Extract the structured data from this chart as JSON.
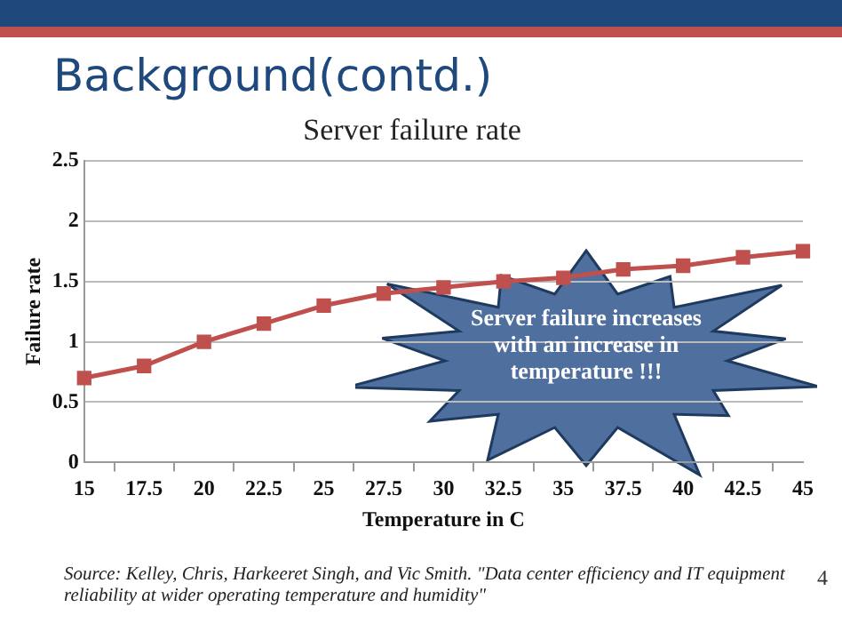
{
  "chart_data": {
    "type": "line",
    "title": "Background(contd.)",
    "subtitle": "Server failure rate",
    "xlabel": "Temperature in C",
    "ylabel": "Failure rate",
    "categories": [
      "15",
      "17.5",
      "20",
      "22.5",
      "25",
      "27.5",
      "30",
      "32.5",
      "35",
      "37.5",
      "40",
      "42.5",
      "45"
    ],
    "series": [
      {
        "color": "#c0504d",
        "values": [
          0.7,
          0.8,
          1.0,
          1.15,
          1.3,
          1.4,
          1.45,
          1.5,
          1.53,
          1.6,
          1.63,
          1.7,
          1.75
        ]
      }
    ],
    "ylim": [
      0,
      2.5
    ],
    "yticks": [
      0,
      0.5,
      1,
      1.5,
      2,
      2.5
    ],
    "grid": "y",
    "legend": false,
    "marker": "square",
    "line_style": "solid",
    "annotations": [
      "Server failure increases with an increase in temperature !!!",
      "Source: Kelley, Chris, Harkeeret Singh, and Vic Smith. \"Data center efficiency and IT equipment reliability at wider operating temperature and humidity\"",
      "4"
    ]
  }
}
